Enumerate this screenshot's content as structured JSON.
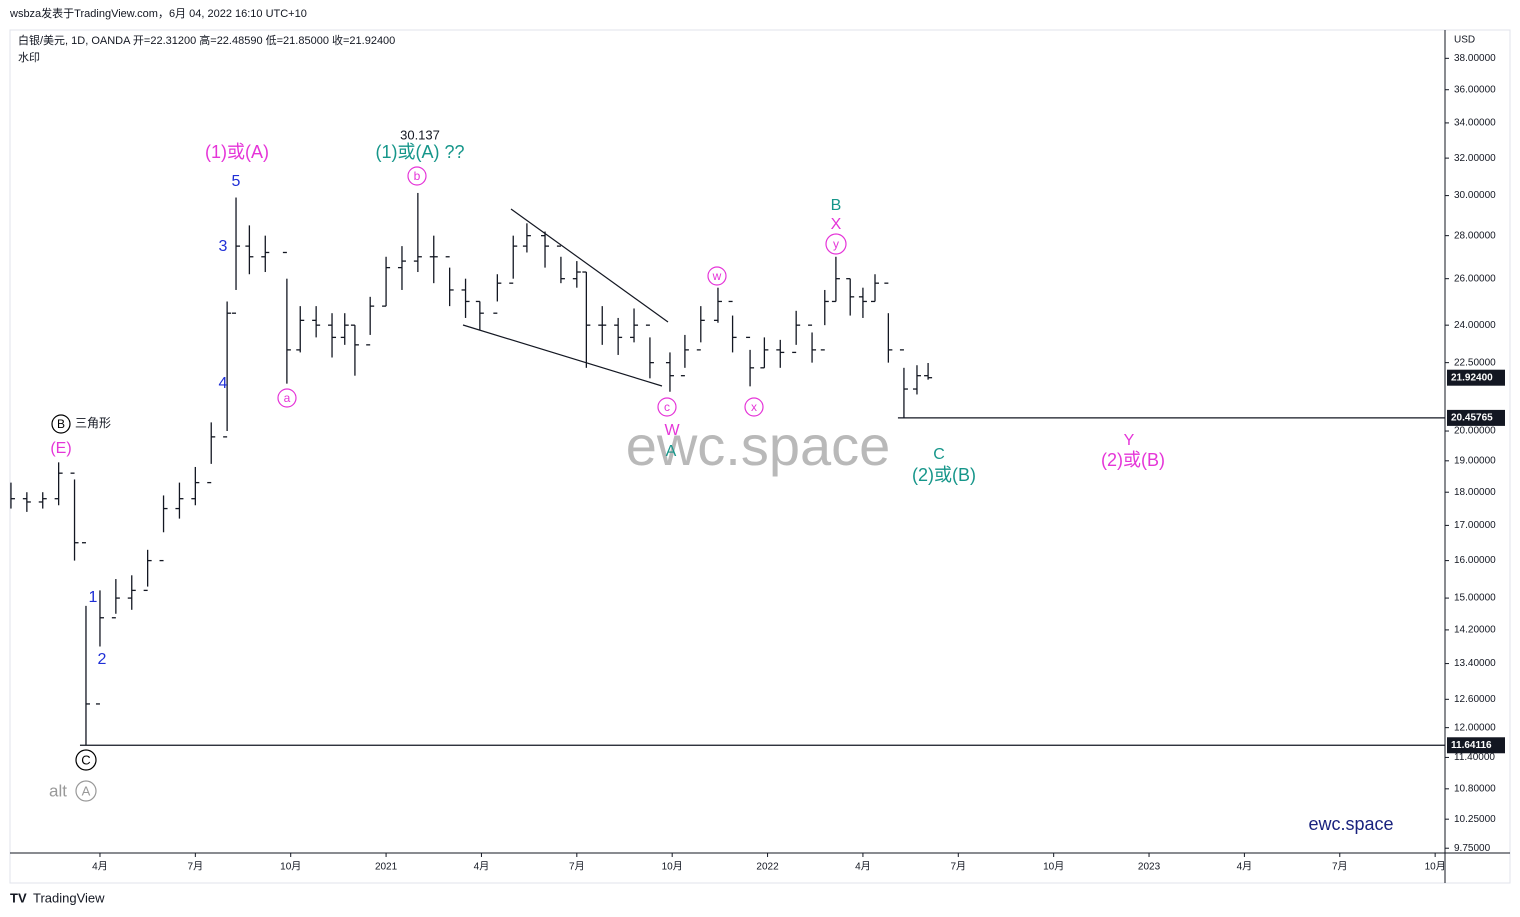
{
  "header": {
    "publisher": "wsbza发表于TradingView.com，6月 04, 2022 16:10 UTC+10",
    "symbol_line": "白银/美元, 1D, OANDA  开=22.31200  高=22.48590  低=21.85000  收=21.92400",
    "watermark_label": "水印",
    "brand": "TradingView"
  },
  "chart_data": {
    "type": "ohlc",
    "color": "#131722",
    "log_scale": true,
    "unit": "USD",
    "x": [
      0.2,
      0.7,
      1.2,
      1.7,
      2.2,
      2.56,
      3.0,
      3.5,
      4.0,
      4.5,
      5.0,
      5.5,
      6.0,
      6.5,
      7.0,
      7.28,
      7.7,
      8.2,
      8.88,
      9.3,
      9.8,
      10.3,
      10.7,
      11.02,
      11.5,
      12.0,
      12.5,
      13.0,
      13.5,
      14.0,
      14.5,
      14.95,
      15.5,
      16.0,
      16.43,
      17.0,
      17.5,
      18.0,
      18.3,
      18.8,
      19.3,
      19.8,
      20.3,
      20.93,
      21.4,
      21.9,
      22.44,
      22.9,
      23.45,
      23.9,
      24.4,
      24.9,
      25.4,
      25.8,
      26.15,
      26.6,
      27.0,
      27.38,
      27.8,
      28.29,
      28.7,
      29.05
    ],
    "high": [
      18.3,
      18.0,
      18.0,
      18.95,
      18.4,
      14.8,
      15.2,
      15.5,
      15.6,
      16.3,
      17.9,
      18.3,
      18.8,
      20.3,
      25.0,
      29.9,
      28.5,
      28.0,
      26.0,
      24.8,
      24.8,
      24.5,
      24.5,
      24.0,
      25.2,
      27.0,
      27.5,
      30.137,
      28.0,
      26.5,
      26.0,
      25.0,
      26.2,
      28.0,
      28.6,
      28.2,
      27.0,
      26.8,
      26.3,
      24.8,
      24.3,
      24.7,
      23.5,
      22.9,
      23.6,
      24.8,
      25.6,
      24.4,
      23.0,
      23.5,
      23.4,
      24.6,
      23.7,
      25.5,
      27.0,
      26.0,
      25.6,
      26.2,
      24.5,
      22.3,
      22.4,
      22.4859
    ],
    "low": [
      17.5,
      17.4,
      17.5,
      17.6,
      16.0,
      11.64116,
      13.8,
      14.6,
      14.7,
      15.3,
      16.8,
      17.2,
      17.6,
      18.9,
      20.0,
      25.5,
      26.2,
      26.3,
      21.7,
      22.9,
      23.5,
      22.7,
      23.2,
      22.0,
      23.6,
      24.8,
      25.5,
      26.3,
      25.8,
      24.8,
      24.3,
      23.8,
      25.0,
      26.0,
      27.2,
      26.5,
      25.8,
      25.6,
      22.3,
      23.2,
      22.8,
      23.3,
      21.9,
      21.4,
      22.3,
      23.3,
      24.1,
      22.9,
      21.6,
      22.3,
      22.3,
      23.2,
      22.5,
      24.0,
      25.0,
      24.4,
      24.3,
      25.0,
      22.5,
      20.45765,
      21.3,
      21.85
    ],
    "close": [
      17.8,
      17.7,
      17.8,
      18.6,
      16.5,
      12.5,
      14.5,
      15.0,
      15.2,
      16.0,
      17.5,
      17.8,
      18.3,
      19.8,
      24.5,
      27.5,
      27.0,
      27.2,
      23.0,
      24.2,
      24.0,
      23.5,
      24.0,
      23.2,
      24.8,
      26.5,
      26.8,
      27.0,
      27.0,
      25.5,
      25.0,
      24.5,
      25.8,
      27.5,
      28.0,
      27.5,
      26.0,
      26.3,
      24.0,
      24.0,
      23.5,
      24.0,
      22.5,
      22.0,
      23.0,
      24.2,
      25.0,
      23.5,
      22.3,
      23.0,
      22.9,
      24.0,
      23.0,
      25.0,
      26.0,
      25.2,
      25.0,
      25.8,
      23.0,
      21.5,
      22.0,
      21.924
    ],
    "xlim": [
      0.17,
      45.31
    ],
    "ylim": [
      9.67,
      39.9
    ],
    "xticks": [
      {
        "value": 3,
        "label": "4月"
      },
      {
        "value": 6,
        "label": "7月"
      },
      {
        "value": 9,
        "label": "10月"
      },
      {
        "value": 12,
        "label": "2021"
      },
      {
        "value": 15,
        "label": "4月"
      },
      {
        "value": 18,
        "label": "7月"
      },
      {
        "value": 21,
        "label": "10月"
      },
      {
        "value": 24,
        "label": "2022"
      },
      {
        "value": 27,
        "label": "4月"
      },
      {
        "value": 30,
        "label": "7月"
      },
      {
        "value": 33,
        "label": "10月"
      },
      {
        "value": 36,
        "label": "2023"
      },
      {
        "value": 39,
        "label": "4月"
      },
      {
        "value": 42,
        "label": "7月"
      },
      {
        "value": 45,
        "label": "10月"
      }
    ],
    "yticks": [
      {
        "value": 38,
        "label": "38.00000"
      },
      {
        "value": 36,
        "label": "36.00000"
      },
      {
        "value": 34,
        "label": "34.00000"
      },
      {
        "value": 32,
        "label": "32.00000"
      },
      {
        "value": 30,
        "label": "30.00000"
      },
      {
        "value": 28,
        "label": "28.00000"
      },
      {
        "value": 26,
        "label": "26.00000"
      },
      {
        "value": 24,
        "label": "24.00000"
      },
      {
        "value": 22.5,
        "label": "22.50000"
      },
      {
        "value": 20,
        "label": "20.00000"
      },
      {
        "value": 19,
        "label": "19.00000"
      },
      {
        "value": 18,
        "label": "18.00000"
      },
      {
        "value": 17,
        "label": "17.00000"
      },
      {
        "value": 16,
        "label": "16.00000"
      },
      {
        "value": 15,
        "label": "15.00000"
      },
      {
        "value": 14.2,
        "label": "14.20000"
      },
      {
        "value": 13.4,
        "label": "13.40000"
      },
      {
        "value": 12.6,
        "label": "12.60000"
      },
      {
        "value": 12,
        "label": "12.00000"
      },
      {
        "value": 11.4,
        "label": "11.40000"
      },
      {
        "value": 10.8,
        "label": "10.80000"
      },
      {
        "value": 10.25,
        "label": "10.25000"
      },
      {
        "value": 9.75,
        "label": "9.75000"
      }
    ],
    "last_price": {
      "value": 21.924,
      "label": "21.92400"
    },
    "levels": [
      {
        "value": 20.45765,
        "label": "20.45765"
      },
      {
        "value": 11.64116,
        "label": "11.64116"
      }
    ],
    "annotations": [
      "(1)或(A)",
      "5",
      "3",
      "4",
      "1",
      "2",
      "30.137",
      "(1)或(A) ??",
      "b",
      "a",
      "B",
      "三角形",
      "(E)",
      "C",
      "alt",
      "A",
      "c",
      "W",
      "A",
      "w",
      "x",
      "B",
      "X",
      "y",
      "C",
      "(2)或(B)",
      "Y",
      "(2)或(B)",
      "ewc.space",
      "ewc.space"
    ]
  }
}
